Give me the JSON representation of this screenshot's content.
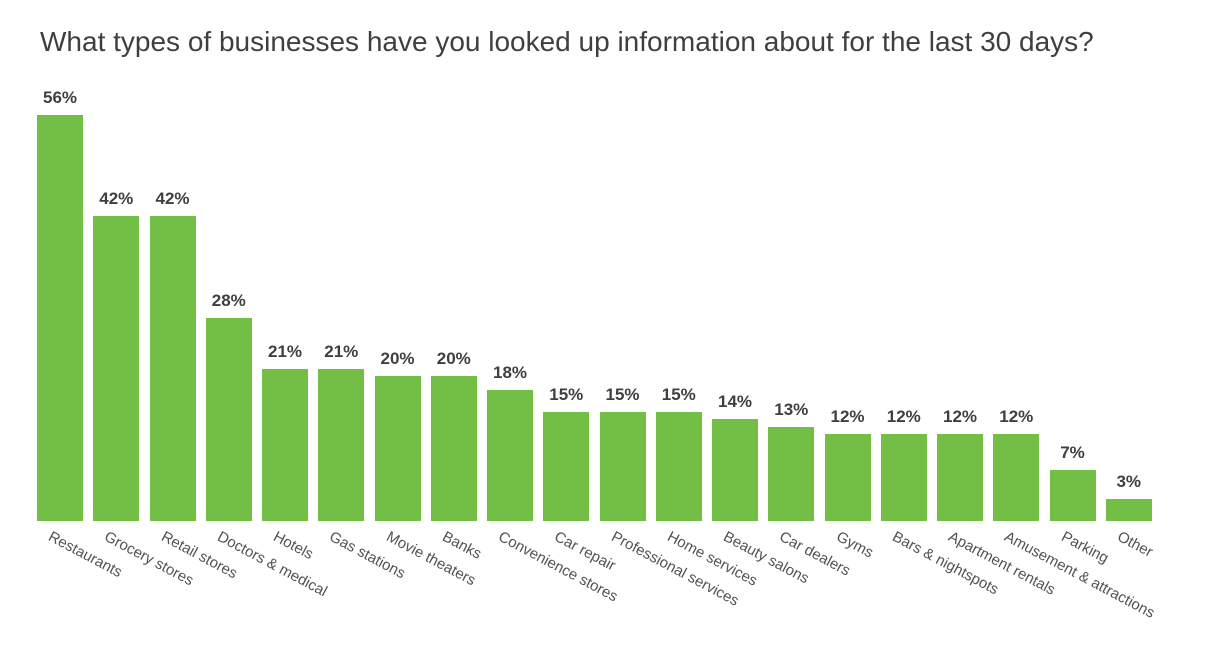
{
  "chart_data": {
    "type": "bar",
    "title": "What types of businesses have you looked up information about for the last 30 days?",
    "categories": [
      "Restaurants",
      "Grocery stores",
      "Retail stores",
      "Doctors & medical",
      "Hotels",
      "Gas stations",
      "Movie theaters",
      "Banks",
      "Convenience stores",
      "Car repair",
      "Professional services",
      "Home services",
      "Beauty salons",
      "Car dealers",
      "Gyms",
      "Bars & nightspots",
      "Apartment rentals",
      "Amusement & attractions",
      "Parking",
      "Other"
    ],
    "values": [
      56,
      42,
      42,
      28,
      21,
      21,
      20,
      20,
      18,
      15,
      15,
      15,
      14,
      13,
      12,
      12,
      12,
      12,
      7,
      3
    ],
    "value_suffix": "%",
    "value_labels_shown": true,
    "category_label_rotation_deg": -28,
    "xlabel": "",
    "ylabel": "",
    "grid": false,
    "legend": "none",
    "colors": {
      "bar": "#73be45",
      "title_text": "#3e3f41",
      "value_label_text": "#3e3f41",
      "category_label_text": "#515256",
      "background": "#ffffff"
    }
  }
}
